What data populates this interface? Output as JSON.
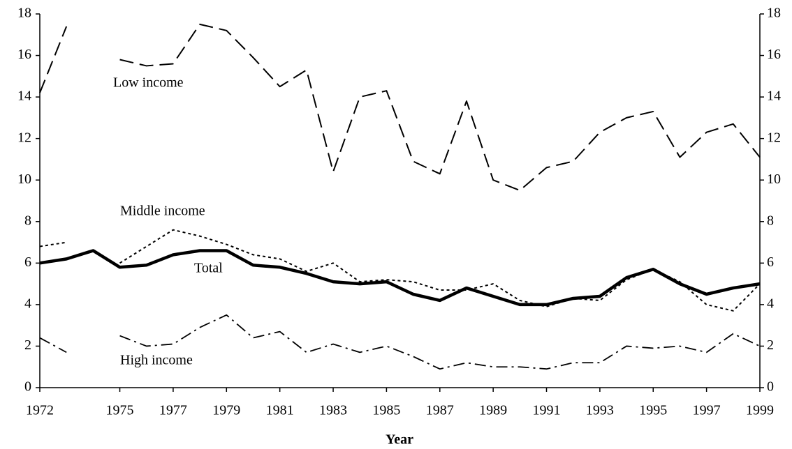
{
  "chart_data": {
    "type": "line",
    "x_label": "Year",
    "x": [
      1972,
      1973,
      1974,
      1975,
      1976,
      1977,
      1978,
      1979,
      1980,
      1981,
      1982,
      1983,
      1984,
      1985,
      1986,
      1987,
      1988,
      1989,
      1990,
      1991,
      1992,
      1993,
      1994,
      1995,
      1996,
      1997,
      1998,
      1999
    ],
    "xlim": [
      1972,
      1999
    ],
    "xticks": [
      1972,
      1975,
      1977,
      1979,
      1981,
      1983,
      1985,
      1987,
      1989,
      1991,
      1993,
      1995,
      1997,
      1999
    ],
    "ylim": [
      0,
      18
    ],
    "yticks": [
      0,
      2,
      4,
      6,
      8,
      10,
      12,
      14,
      16,
      18
    ],
    "y2lim": [
      0,
      18
    ],
    "y2ticks": [
      0,
      2,
      4,
      6,
      8,
      10,
      12,
      14,
      16,
      18
    ],
    "series": [
      {
        "name": "Low income",
        "color": "#000000",
        "values": [
          14.2,
          17.4,
          null,
          15.8,
          15.5,
          15.6,
          17.5,
          17.2,
          15.9,
          14.5,
          15.3,
          10.4,
          14.0,
          14.3,
          10.9,
          10.3,
          13.8,
          10.0,
          9.5,
          10.6,
          10.9,
          12.3,
          13.0,
          13.3,
          11.1,
          12.3,
          12.7,
          11.1
        ]
      },
      {
        "name": "Middle income",
        "color": "#000000",
        "values": [
          6.8,
          7.0,
          null,
          6.0,
          6.8,
          7.6,
          7.3,
          6.9,
          6.4,
          6.2,
          5.6,
          6.0,
          5.1,
          5.2,
          5.1,
          4.7,
          4.7,
          5.0,
          4.2,
          3.9,
          4.3,
          4.2,
          5.2,
          5.7,
          5.1,
          4.0,
          3.7,
          5.0
        ]
      },
      {
        "name": "Total",
        "color": "#000000",
        "values": [
          6.0,
          6.2,
          6.6,
          5.8,
          5.9,
          6.4,
          6.6,
          6.6,
          5.9,
          5.8,
          5.5,
          5.1,
          5.0,
          5.1,
          4.5,
          4.2,
          4.8,
          4.4,
          4.0,
          4.0,
          4.3,
          4.4,
          5.3,
          5.7,
          5.0,
          4.5,
          4.8,
          5.0
        ]
      },
      {
        "name": "High income",
        "color": "#000000",
        "values": [
          2.4,
          1.7,
          null,
          2.5,
          2.0,
          2.1,
          2.9,
          3.5,
          2.4,
          2.7,
          1.7,
          2.1,
          1.7,
          2.0,
          1.5,
          0.9,
          1.2,
          1.0,
          1.0,
          0.9,
          1.2,
          1.2,
          2.0,
          1.9,
          2.0,
          1.7,
          2.6,
          2.0
        ]
      }
    ]
  }
}
